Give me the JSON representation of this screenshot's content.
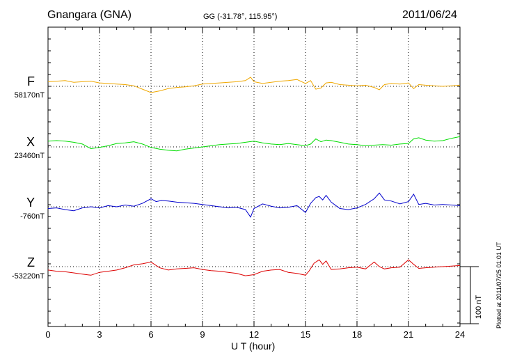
{
  "header": {
    "station": "Gnangara (GNA)",
    "coords": "GG (-31.78°, 115.95°)",
    "date": "2011/06/24"
  },
  "footer": {
    "plotted": "Plotted at 2011/07/25 01:01 UT"
  },
  "chart_data": {
    "type": "line",
    "title": "Gnangara (GNA)",
    "xlabel": "U T (hour)",
    "xlim": [
      0,
      24
    ],
    "xticks": [
      0,
      3,
      6,
      9,
      12,
      15,
      18,
      21,
      24
    ],
    "grid": true,
    "scale_bar_label": "100 nT",
    "scale_bar_nT": 100,
    "series": [
      {
        "name": "F",
        "baseline": "58170nT",
        "color": "#f0a800",
        "x": [
          0,
          0.5,
          1,
          1.5,
          2,
          2.5,
          3,
          3.5,
          4,
          4.5,
          5,
          5.5,
          6,
          6.5,
          7,
          7.5,
          8,
          8.5,
          9,
          9.5,
          10,
          10.5,
          11,
          11.5,
          11.8,
          12,
          12.5,
          13,
          13.5,
          14,
          14.5,
          15,
          15.3,
          15.6,
          15.9,
          16.2,
          16.5,
          17,
          17.5,
          18,
          18.5,
          19,
          19.3,
          19.6,
          20,
          20.5,
          21,
          21.3,
          21.6,
          22,
          22.5,
          23,
          23.5,
          24
        ],
        "y": [
          8,
          9,
          10,
          7,
          8,
          9,
          6,
          5,
          4,
          3,
          1,
          -5,
          -11,
          -8,
          -4,
          -2,
          -1,
          1,
          4,
          5,
          6,
          7,
          8,
          10,
          16,
          8,
          5,
          7,
          9,
          10,
          12,
          5,
          10,
          -5,
          -3,
          6,
          7,
          3,
          2,
          1,
          2,
          -2,
          -6,
          3,
          5,
          4,
          6,
          -4,
          3,
          2,
          1,
          0,
          1,
          2
        ]
      },
      {
        "name": "X",
        "baseline": "23460nT",
        "color": "#00dd00",
        "x": [
          0,
          0.5,
          1,
          1.5,
          2,
          2.5,
          3,
          3.5,
          4,
          4.5,
          5,
          5.5,
          6,
          6.5,
          7,
          7.5,
          8,
          8.5,
          9,
          9.5,
          10,
          10.5,
          11,
          11.5,
          12,
          12.5,
          13,
          13.5,
          14,
          14.5,
          15,
          15.3,
          15.6,
          15.9,
          16.2,
          16.5,
          17,
          17.5,
          18,
          18.5,
          19,
          19.5,
          20,
          20.5,
          21,
          21.3,
          21.6,
          22,
          22.5,
          23,
          23.5,
          24
        ],
        "y": [
          10,
          11,
          10,
          8,
          5,
          -3,
          -1,
          2,
          6,
          7,
          9,
          5,
          -1,
          -4,
          -6,
          -7,
          -4,
          -2,
          0,
          2,
          4,
          5,
          6,
          8,
          10,
          7,
          5,
          4,
          6,
          4,
          2,
          5,
          14,
          9,
          12,
          11,
          8,
          5,
          4,
          2,
          3,
          4,
          3,
          5,
          6,
          14,
          16,
          12,
          10,
          11,
          15,
          18
        ]
      },
      {
        "name": "Y",
        "baseline": "-760nT",
        "color": "#0000cc",
        "x": [
          0,
          0.5,
          1,
          1.5,
          2,
          2.5,
          3,
          3.5,
          4,
          4.5,
          5,
          5.5,
          6,
          6.3,
          6.6,
          7,
          7.5,
          8,
          8.5,
          9,
          9.5,
          10,
          10.5,
          11,
          11.5,
          11.8,
          12,
          12.5,
          13,
          13.5,
          14,
          14.5,
          15,
          15.3,
          15.6,
          15.8,
          16,
          16.2,
          16.5,
          17,
          17.5,
          18,
          18.5,
          19,
          19.3,
          19.6,
          20,
          20.5,
          21,
          21.3,
          21.6,
          22,
          22.5,
          23,
          23.5,
          24
        ],
        "y": [
          -3,
          -2,
          -5,
          -7,
          -2,
          0,
          -2,
          2,
          0,
          3,
          1,
          6,
          14,
          9,
          11,
          10,
          8,
          7,
          6,
          4,
          2,
          0,
          -2,
          -1,
          -5,
          -18,
          -3,
          5,
          1,
          -2,
          -1,
          2,
          -10,
          6,
          16,
          18,
          12,
          20,
          8,
          -3,
          -5,
          -2,
          4,
          14,
          24,
          12,
          10,
          5,
          9,
          22,
          4,
          6,
          3,
          4,
          3,
          2
        ]
      },
      {
        "name": "Z",
        "baseline": "-53220nT",
        "color": "#dd0000",
        "x": [
          0,
          0.5,
          1,
          1.5,
          2,
          2.5,
          3,
          3.5,
          4,
          4.5,
          5,
          5.5,
          6,
          6.5,
          7,
          7.5,
          8,
          8.5,
          9,
          9.5,
          10,
          10.5,
          11,
          11.5,
          12,
          12.5,
          13,
          13.5,
          14,
          14.5,
          15,
          15.2,
          15.5,
          15.8,
          16,
          16.2,
          16.5,
          17,
          17.5,
          18,
          18.5,
          19,
          19.3,
          19.6,
          20,
          20.5,
          21,
          21.3,
          21.6,
          22,
          22.5,
          23,
          23.5,
          24
        ],
        "y": [
          -6,
          -8,
          -9,
          -11,
          -13,
          -15,
          -10,
          -8,
          -6,
          -2,
          3,
          5,
          8,
          -2,
          -6,
          -4,
          -3,
          -2,
          -5,
          -7,
          -8,
          -10,
          -12,
          -16,
          -14,
          -8,
          -6,
          -5,
          -10,
          -12,
          -15,
          -8,
          6,
          12,
          4,
          10,
          -5,
          -4,
          -2,
          -1,
          -4,
          8,
          0,
          -4,
          -2,
          -1,
          12,
          4,
          -3,
          -2,
          -1,
          0,
          1,
          2
        ]
      }
    ]
  }
}
